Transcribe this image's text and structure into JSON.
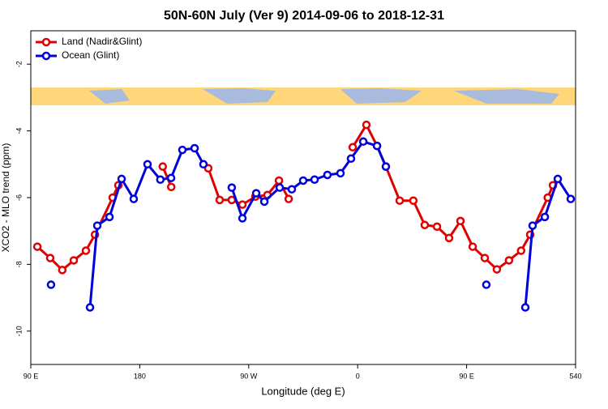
{
  "chart_data": {
    "type": "line",
    "title": "50N-60N July (Ver 9)   2014-09-06 to 2018-12-31",
    "x_label": "Longitude (deg E)",
    "y_label": "XCO2 - MLO trend (ppm)",
    "xlim": [
      90,
      540
    ],
    "ylim": [
      -11,
      -1
    ],
    "xticks": [
      {
        "value": 90,
        "label": "90 E"
      },
      180,
      {
        "value": 270,
        "label": "90 W"
      },
      {
        "value": 360,
        "label": "0"
      },
      {
        "value": 450,
        "label": "90 E"
      },
      540
    ],
    "yticks": [
      -2,
      -4,
      -6,
      -8,
      -10
    ],
    "legend": "top-left",
    "series": [
      {
        "name": "Land (Nadir&Glint)",
        "color": "#e00000",
        "x": [
          95.4,
          106,
          116,
          125.5,
          135.5,
          143,
          157.6,
          162.3,
          null,
          199,
          206,
          null,
          236.6,
          246,
          256,
          264.8,
          275.5,
          285.5,
          295,
          303,
          null,
          355.9,
          367.2,
          376,
          383.3,
          394.7,
          406,
          415.4,
          425.5,
          435.5,
          444.9,
          455,
          465,
          475,
          485,
          495,
          502.5,
          517,
          521.3
        ],
        "values": [
          -7.47,
          -7.81,
          -8.17,
          -7.88,
          -7.59,
          -7.11,
          -6.0,
          -5.63,
          null,
          -5.07,
          -5.68,
          null,
          -5.12,
          -6.07,
          -6.07,
          -6.21,
          -5.97,
          -5.92,
          -5.49,
          -6.04,
          null,
          -4.49,
          -3.82,
          -4.45,
          -5.07,
          -6.09,
          -6.09,
          -6.82,
          -6.87,
          -7.21,
          -6.7,
          -7.47,
          -7.81,
          -8.15,
          -7.88,
          -7.59,
          -7.11,
          -6.0,
          -5.63
        ]
      },
      {
        "name": "Ocean (Glint)",
        "color": "#0000dd",
        "x": [
          106.7,
          null,
          138.9,
          144.9,
          155,
          165,
          175,
          186.4,
          197,
          205.9,
          215.2,
          225.3,
          232.6,
          null,
          256,
          264.8,
          276.2,
          282.9,
          295.6,
          305.6,
          315,
          324.4,
          335,
          345.8,
          354.5,
          364.6,
          376,
          383.3,
          null,
          466.3,
          null,
          498.5,
          504.5,
          514.6,
          525.3,
          536
        ],
        "values": [
          -8.61,
          null,
          -9.29,
          -6.84,
          -6.58,
          -5.44,
          -6.04,
          -5.0,
          -5.46,
          -5.41,
          -4.57,
          -4.52,
          -5.0,
          null,
          -5.7,
          -6.62,
          -5.87,
          -6.12,
          -5.7,
          -5.75,
          -5.49,
          -5.46,
          -5.32,
          -5.27,
          -4.83,
          -4.32,
          -4.45,
          -5.07,
          null,
          -8.61,
          null,
          -9.29,
          -6.84,
          -6.58,
          -5.44,
          -6.04
        ]
      }
    ]
  }
}
